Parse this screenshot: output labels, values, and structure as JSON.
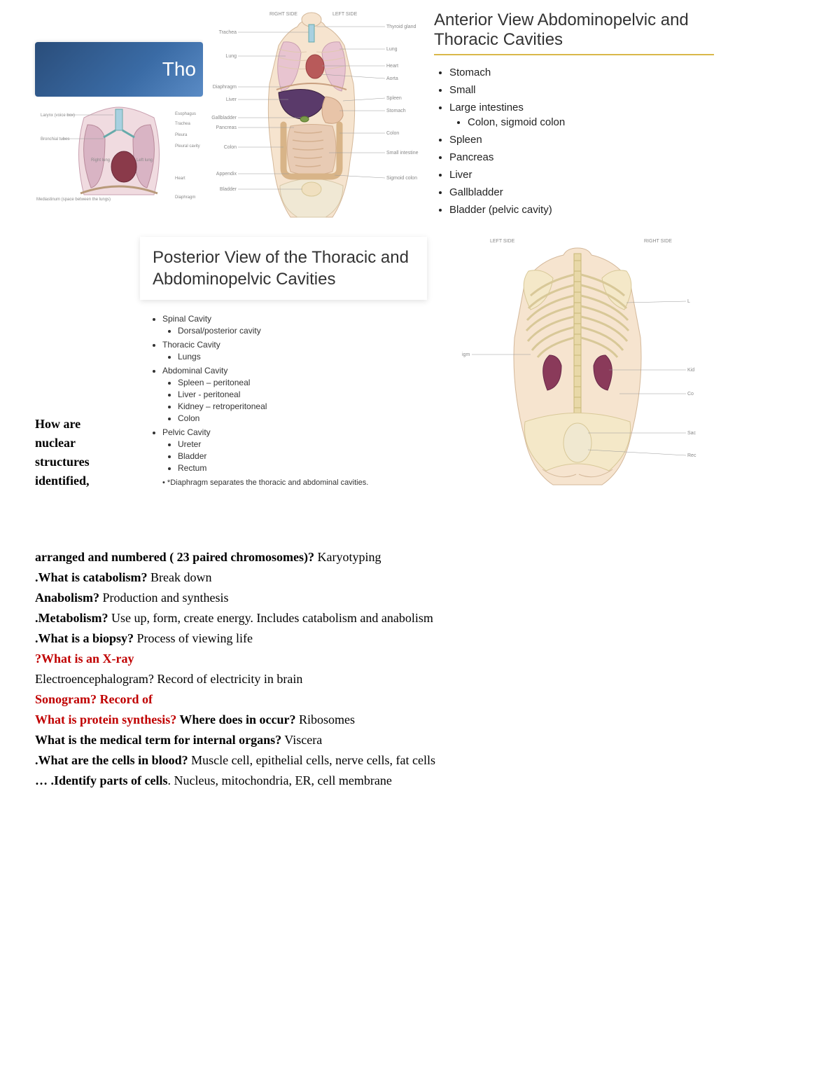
{
  "colors": {
    "banner_gradient_start": "#2a4d7a",
    "banner_gradient_end": "#5a8bc5",
    "accent_underline": "#d9b84a",
    "text_red": "#c00000",
    "skin": "#f6e4cf",
    "liver": "#5a3a6a",
    "lung_pink": "#e8c4d0",
    "intestine": "#e8cbb4",
    "kidney": "#8a3a5a",
    "bone": "#f4e8c8",
    "spine": "#e8d8a8"
  },
  "banner": {
    "text": "Tho"
  },
  "anterior_slide": {
    "title": "Anterior View Abdominopelvic and Thoracic Cavities",
    "items": [
      {
        "label": "Stomach"
      },
      {
        "label": "Small"
      },
      {
        "label": "Large intestines",
        "sub": [
          "Colon, sigmoid colon"
        ]
      },
      {
        "label": "Spleen"
      },
      {
        "label": "Pancreas"
      },
      {
        "label": "Liver"
      },
      {
        "label": "Gallbladder"
      },
      {
        "label": "Bladder (pelvic cavity)"
      }
    ]
  },
  "posterior_slide": {
    "title": "Posterior View of the Thoracic and Abdominopelvic Cavities",
    "items": [
      {
        "label": "Spinal Cavity",
        "sub": [
          "Dorsal/posterior cavity"
        ]
      },
      {
        "label": "Thoracic Cavity",
        "sub": [
          "Lungs"
        ]
      },
      {
        "label": "Abdominal Cavity",
        "sub": [
          "Spleen – peritoneal",
          "Liver - peritoneal",
          "Kidney – retroperitoneal",
          "Colon"
        ]
      },
      {
        "label": "Pelvic Cavity",
        "sub": [
          "Ureter",
          "Bladder",
          "Rectum"
        ]
      }
    ],
    "note": "*Diaphragm separates the thoracic and abdominal cavities."
  },
  "anterior_diagram": {
    "header_left": "RIGHT SIDE",
    "header_right": "LEFT SIDE",
    "labels_left": [
      "Trachea",
      "Lung",
      "Diaphragm",
      "Liver",
      "Gallbladder",
      "Pancreas",
      "Colon",
      "Appendix",
      "Bladder"
    ],
    "labels_right": [
      "Thyroid gland",
      "Lung",
      "Heart",
      "Aorta",
      "Spleen",
      "Stomach",
      "Colon",
      "Small intestine",
      "Sigmoid colon"
    ]
  },
  "thorax_diagram": {
    "labels_left": [
      "Larynx (voice box)",
      "Bronchial tubes",
      "Mediastinum (space between the lungs)"
    ],
    "labels_right": [
      "Esophagus",
      "Trachea",
      "Pleura",
      "Pleural cavity",
      "Heart",
      "Diaphragm"
    ],
    "lung_left": "Right lung",
    "lung_right": "Left lung"
  },
  "posterior_diagram": {
    "header_left": "LEFT SIDE",
    "header_right": "RIGHT SIDE",
    "labels_left": [
      "igm"
    ],
    "labels_right": [
      "L",
      "Kid",
      "Co",
      "Sac",
      "Rec"
    ]
  },
  "qa": {
    "narrow_q": "How are nuclear structures identified,",
    "lines": [
      {
        "q": "arranged and numbered ( 23 paired chromosomes)?",
        "a": " Karyotyping"
      },
      {
        "q": ".What is catabolism?",
        "a": " Break down"
      },
      {
        "q": "Anabolism?",
        "a": " Production and synthesis"
      },
      {
        "q": " .Metabolism?",
        "a": " Use up, form, create energy. Includes catabolism and anabolism"
      },
      {
        "q": " .What is a biopsy?",
        "a": " Process of viewing life"
      },
      {
        "red": true,
        "q": " ?What is an X-ray",
        "a": ""
      },
      {
        "plain": true,
        "q": "",
        "a": "Electroencephalogram? Record of electricity in brain"
      },
      {
        "red": true,
        "q": " Sonogram? Record of",
        "a": ""
      },
      {
        "red_q": true,
        "q": " What is protein synthesis?",
        "q2": "  Where does in occur?",
        "a": " Ribosomes"
      },
      {
        "q": " What is the medical term for internal organs?",
        "a": " Viscera"
      },
      {
        "q": " .What are the cells in blood?",
        "a": " Muscle cell, epithelial cells, nerve cells, fat cells"
      },
      {
        "q": "… .Identify parts of cells",
        "a": ". Nucleus, mitochondria, ER, cell membrane"
      }
    ]
  }
}
